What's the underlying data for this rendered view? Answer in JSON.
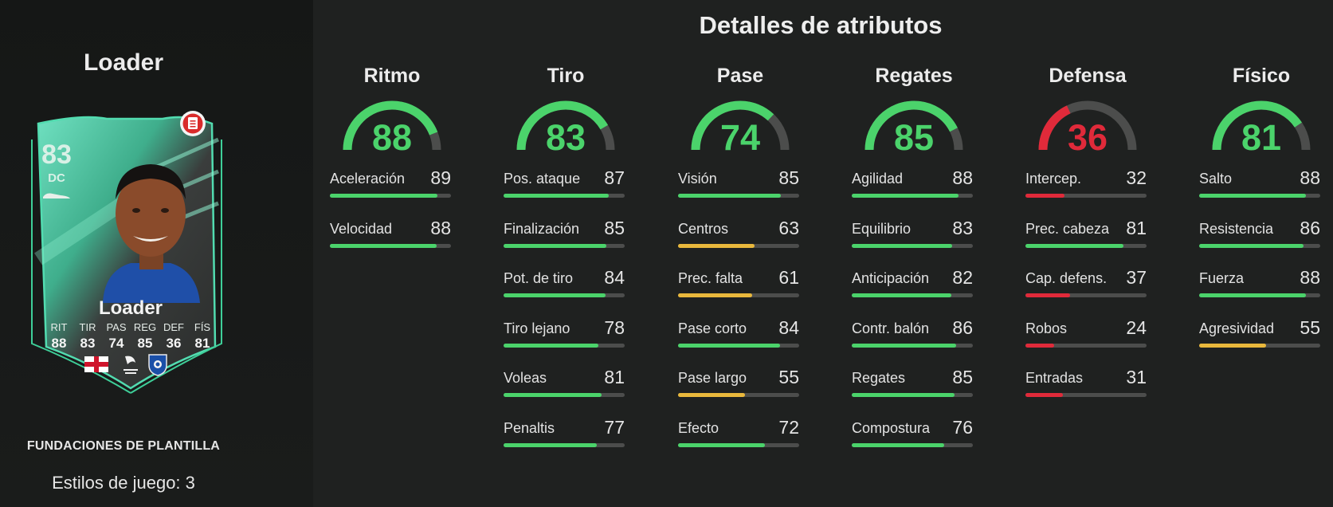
{
  "player_name": "Loader",
  "card": {
    "rating": "83",
    "position": "DC",
    "name": "Loader",
    "stats": [
      {
        "label": "RIT",
        "value": "88"
      },
      {
        "label": "TIR",
        "value": "83"
      },
      {
        "label": "PAS",
        "value": "74"
      },
      {
        "label": "REG",
        "value": "85"
      },
      {
        "label": "DEF",
        "value": "36"
      },
      {
        "label": "FÍS",
        "value": "81"
      }
    ],
    "league_text": "LIGA PORTUGAL",
    "accent_color": "#3ecf99"
  },
  "set_name": "FUNDACIONES DE PLANTILLA",
  "playstyles_text": "Estilos de juego: 3",
  "title": "Detalles de atributos",
  "colors": {
    "high": "#4bd36b",
    "mid": "#e9b83c",
    "low": "#e02a3a",
    "track": "#4c4d4c"
  },
  "categories": [
    {
      "title": "Ritmo",
      "value": "88",
      "color": "#4bd36b",
      "attributes": [
        {
          "label": "Aceleración",
          "value": "89",
          "color": "#4bd36b"
        },
        {
          "label": "Velocidad",
          "value": "88",
          "color": "#4bd36b"
        }
      ]
    },
    {
      "title": "Tiro",
      "value": "83",
      "color": "#4bd36b",
      "attributes": [
        {
          "label": "Pos. ataque",
          "value": "87",
          "color": "#4bd36b"
        },
        {
          "label": "Finalización",
          "value": "85",
          "color": "#4bd36b"
        },
        {
          "label": "Pot. de tiro",
          "value": "84",
          "color": "#4bd36b"
        },
        {
          "label": "Tiro lejano",
          "value": "78",
          "color": "#4bd36b"
        },
        {
          "label": "Voleas",
          "value": "81",
          "color": "#4bd36b"
        },
        {
          "label": "Penaltis",
          "value": "77",
          "color": "#4bd36b"
        }
      ]
    },
    {
      "title": "Pase",
      "value": "74",
      "color": "#4bd36b",
      "attributes": [
        {
          "label": "Visión",
          "value": "85",
          "color": "#4bd36b"
        },
        {
          "label": "Centros",
          "value": "63",
          "color": "#e9b83c"
        },
        {
          "label": "Prec. falta",
          "value": "61",
          "color": "#e9b83c"
        },
        {
          "label": "Pase corto",
          "value": "84",
          "color": "#4bd36b"
        },
        {
          "label": "Pase largo",
          "value": "55",
          "color": "#e9b83c"
        },
        {
          "label": "Efecto",
          "value": "72",
          "color": "#4bd36b"
        }
      ]
    },
    {
      "title": "Regates",
      "value": "85",
      "color": "#4bd36b",
      "attributes": [
        {
          "label": "Agilidad",
          "value": "88",
          "color": "#4bd36b"
        },
        {
          "label": "Equilibrio",
          "value": "83",
          "color": "#4bd36b"
        },
        {
          "label": "Anticipación",
          "value": "82",
          "color": "#4bd36b"
        },
        {
          "label": "Contr. balón",
          "value": "86",
          "color": "#4bd36b"
        },
        {
          "label": "Regates",
          "value": "85",
          "color": "#4bd36b"
        },
        {
          "label": "Compostura",
          "value": "76",
          "color": "#4bd36b"
        }
      ]
    },
    {
      "title": "Defensa",
      "value": "36",
      "color": "#e02a3a",
      "attributes": [
        {
          "label": "Intercep.",
          "value": "32",
          "color": "#e02a3a"
        },
        {
          "label": "Prec. cabeza",
          "value": "81",
          "color": "#4bd36b"
        },
        {
          "label": "Cap. defens.",
          "value": "37",
          "color": "#e02a3a"
        },
        {
          "label": "Robos",
          "value": "24",
          "color": "#e02a3a"
        },
        {
          "label": "Entradas",
          "value": "31",
          "color": "#e02a3a"
        }
      ]
    },
    {
      "title": "Físico",
      "value": "81",
      "color": "#4bd36b",
      "attributes": [
        {
          "label": "Salto",
          "value": "88",
          "color": "#4bd36b"
        },
        {
          "label": "Resistencia",
          "value": "86",
          "color": "#4bd36b"
        },
        {
          "label": "Fuerza",
          "value": "88",
          "color": "#4bd36b"
        },
        {
          "label": "Agresividad",
          "value": "55",
          "color": "#e9b83c"
        }
      ]
    }
  ]
}
